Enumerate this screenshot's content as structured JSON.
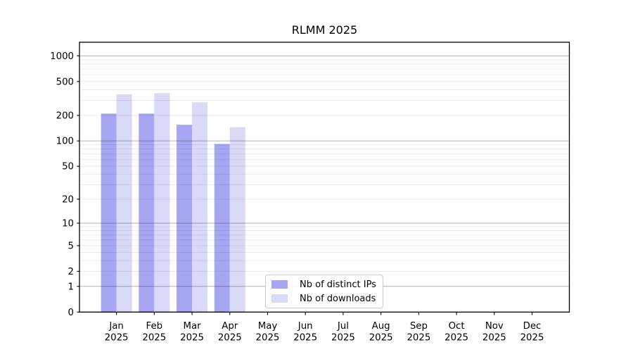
{
  "chart_data": {
    "type": "bar",
    "title": "RLMM 2025",
    "categories": [
      "Jan",
      "Feb",
      "Mar",
      "Apr",
      "May",
      "Jun",
      "Jul",
      "Aug",
      "Sep",
      "Oct",
      "Nov",
      "Dec"
    ],
    "category_year_label": "2025",
    "series": [
      {
        "name": "Nb of distinct IPs",
        "color": "#a6a6f2",
        "values": [
          210,
          210,
          155,
          92,
          null,
          null,
          null,
          null,
          null,
          null,
          null,
          null
        ]
      },
      {
        "name": "Nb of downloads",
        "color": "#d9d9f8",
        "values": [
          355,
          365,
          285,
          145,
          null,
          null,
          null,
          null,
          null,
          null,
          null,
          null
        ]
      }
    ],
    "xlabel": "",
    "ylabel": "",
    "yscale": "log10(value+1)",
    "yticks": [
      0,
      1,
      2,
      5,
      10,
      20,
      50,
      100,
      200,
      500,
      1000
    ],
    "ylim": [
      0,
      1440
    ],
    "grid": "both-major-and-minor",
    "legend_position": "inside-bottom-center"
  },
  "colors": {
    "bar_distinct_ips": "#a6a6f2",
    "bar_downloads": "#d9d9f8",
    "grid_major": "rgba(0,0,0,0.30)",
    "grid_minor": "rgba(0,0,0,0.08)",
    "spine": "#000000",
    "tick_text": "#000000",
    "legend_border": "#cccccc",
    "background": "#ffffff"
  }
}
